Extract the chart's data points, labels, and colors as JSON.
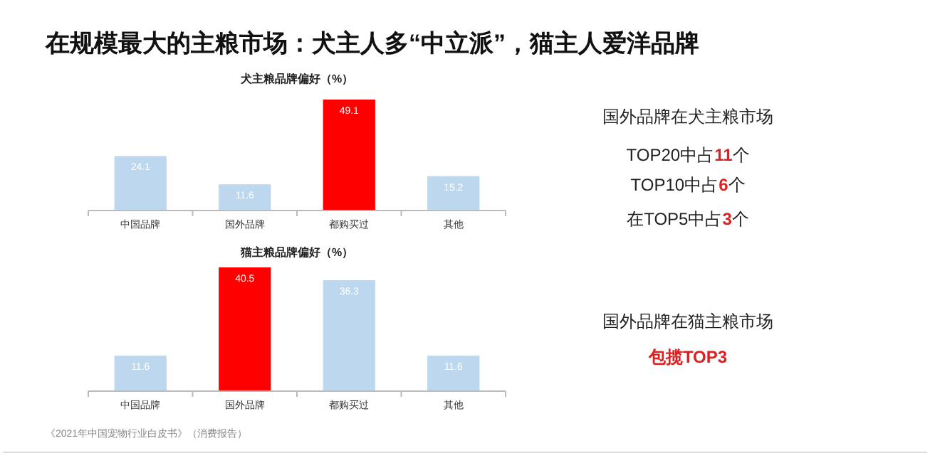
{
  "chart_data": [
    {
      "type": "bar",
      "title": "犬主粮品牌偏好（%）",
      "categories": [
        "中国品牌",
        "国外品牌",
        "都购买过",
        "其他"
      ],
      "values": [
        24.1,
        11.6,
        49.1,
        15.2
      ],
      "colors": [
        "#bdd7ee",
        "#bdd7ee",
        "#ff0000",
        "#bdd7ee"
      ],
      "data_labels": true
    },
    {
      "type": "bar",
      "title": "猫主粮品牌偏好（%）",
      "categories": [
        "中国品牌",
        "国外品牌",
        "都购买过",
        "其他"
      ],
      "values": [
        11.6,
        40.5,
        36.3,
        11.6
      ],
      "colors": [
        "#bdd7ee",
        "#ff0000",
        "#bdd7ee",
        "#bdd7ee"
      ],
      "data_labels": true
    },
    {
      "type": "other",
      "title": "在规模最大的主粮市场：犬主人多“中立派”，猫主人爱洋品牌",
      "annotations": [
        "国外品牌在犬主粮市场",
        "TOP20中占11个",
        "TOP10中占6个",
        "在TOP5中占3个",
        "国外品牌在猫主粮市场",
        "包揽TOP3",
        "《2021年中国宠物行业白皮书》（消费报告）"
      ]
    }
  ]
}
